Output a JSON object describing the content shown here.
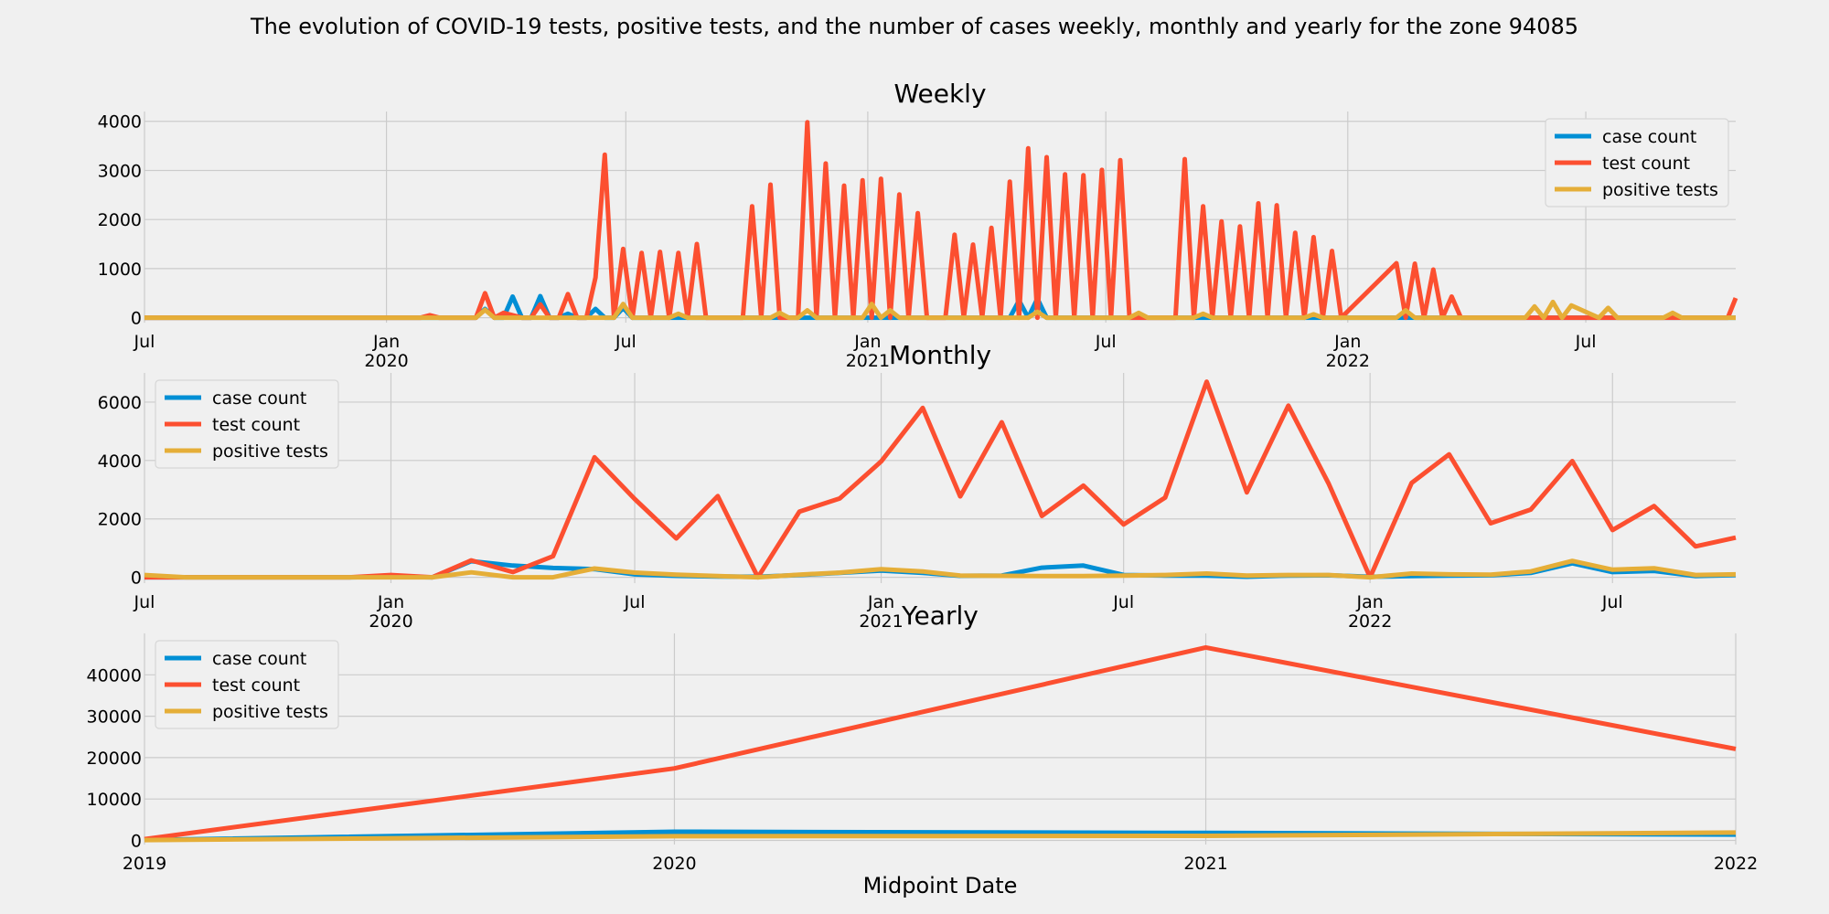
{
  "suptitle": "The evolution of COVID-19 tests, positive tests, and the number of cases weekly, monthly and yearly for the zone 94085",
  "colors": {
    "case count": "#008fd5",
    "test count": "#fc4f30",
    "positive tests": "#e5ae38",
    "background": "#f0f0f0",
    "grid": "#cbcbcb"
  },
  "chart_data": [
    {
      "type": "line",
      "title": "Weekly",
      "xlabel": "",
      "ylabel": "",
      "grid": true,
      "legend": "top-right",
      "xlim": [
        "2019-07-01",
        "2022-10-23"
      ],
      "ylim": [
        -100,
        4200
      ],
      "yticks": [
        0,
        1000,
        2000,
        3000,
        4000
      ],
      "xticks": [
        {
          "date": "2019-07-01",
          "label": "Jul",
          "sub": ""
        },
        {
          "date": "2020-01-01",
          "label": "Jan",
          "sub": "2020"
        },
        {
          "date": "2020-07-01",
          "label": "Jul",
          "sub": ""
        },
        {
          "date": "2021-01-01",
          "label": "Jan",
          "sub": "2021"
        },
        {
          "date": "2021-07-01",
          "label": "Jul",
          "sub": ""
        },
        {
          "date": "2022-01-01",
          "label": "Jan",
          "sub": "2022"
        },
        {
          "date": "2022-07-01",
          "label": "Jul",
          "sub": ""
        }
      ],
      "series": [
        {
          "name": "case count",
          "x": [
            "2019-07-01",
            "2020-01-20",
            "2020-02-24",
            "2020-03-09",
            "2020-03-16",
            "2020-03-23",
            "2020-03-30",
            "2020-04-06",
            "2020-04-13",
            "2020-04-20",
            "2020-04-27",
            "2020-05-04",
            "2020-05-11",
            "2020-05-18",
            "2020-05-25",
            "2020-06-01",
            "2020-06-08",
            "2020-06-15",
            "2020-06-22",
            "2020-06-29",
            "2020-07-06",
            "2021-04-19",
            "2021-04-26",
            "2021-05-03",
            "2021-05-10",
            "2021-05-17",
            "2022-10-23"
          ],
          "values": [
            0,
            0,
            0,
            0,
            180,
            0,
            0,
            430,
            0,
            0,
            440,
            0,
            0,
            80,
            0,
            0,
            180,
            0,
            0,
            200,
            0,
            0,
            350,
            0,
            390,
            0,
            0
          ]
        },
        {
          "name": "test count",
          "x": [
            "2019-07-01",
            "2020-01-27",
            "2020-02-03",
            "2020-02-10",
            "2020-03-09",
            "2020-03-16",
            "2020-03-23",
            "2020-03-30",
            "2020-04-06",
            "2020-04-13",
            "2020-04-20",
            "2020-04-27",
            "2020-05-04",
            "2020-05-11",
            "2020-05-18",
            "2020-05-25",
            "2020-06-01",
            "2020-06-08",
            "2020-06-15",
            "2020-06-22",
            "2020-06-29",
            "2020-07-06",
            "2020-07-13",
            "2020-07-20",
            "2020-07-27",
            "2020-08-03",
            "2020-08-10",
            "2020-08-17",
            "2020-08-24",
            "2020-08-31",
            "2020-09-07",
            "2020-09-14",
            "2020-09-21",
            "2020-09-28",
            "2020-10-05",
            "2020-10-12",
            "2020-10-19",
            "2020-10-26",
            "2020-11-02",
            "2020-11-09",
            "2020-11-16",
            "2020-11-23",
            "2020-11-30",
            "2020-12-07",
            "2020-12-14",
            "2020-12-21",
            "2020-12-28",
            "2021-01-04",
            "2021-01-11",
            "2021-01-18",
            "2021-01-25",
            "2021-02-01",
            "2021-02-08",
            "2021-02-15",
            "2021-02-22",
            "2021-03-01",
            "2021-03-08",
            "2021-03-15",
            "2021-03-22",
            "2021-03-29",
            "2021-04-05",
            "2021-04-12",
            "2021-04-19",
            "2021-04-26",
            "2021-05-03",
            "2021-05-10",
            "2021-05-17",
            "2021-05-24",
            "2021-05-31",
            "2021-06-07",
            "2021-06-14",
            "2021-06-21",
            "2021-06-28",
            "2021-07-05",
            "2021-07-12",
            "2021-07-19",
            "2021-07-26",
            "2021-08-02",
            "2021-08-09",
            "2021-08-16",
            "2021-08-23",
            "2021-08-30",
            "2021-09-06",
            "2021-09-13",
            "2021-09-20",
            "2021-09-27",
            "2021-10-04",
            "2021-10-11",
            "2021-10-18",
            "2021-10-25",
            "2021-11-01",
            "2021-11-08",
            "2021-11-15",
            "2021-11-22",
            "2021-11-29",
            "2021-12-06",
            "2021-12-13",
            "2021-12-20",
            "2021-12-27",
            "2022-02-07",
            "2022-02-14",
            "2022-02-21",
            "2022-02-28",
            "2022-03-07",
            "2022-03-14",
            "2022-03-21",
            "2022-03-28",
            "2022-04-04",
            "2022-04-11",
            "2022-04-18",
            "2022-04-25",
            "2022-05-02",
            "2022-05-09",
            "2022-05-16",
            "2022-05-23",
            "2022-05-30",
            "2022-06-06",
            "2022-06-13",
            "2022-06-20",
            "2022-06-27",
            "2022-07-04",
            "2022-07-11",
            "2022-07-18",
            "2022-07-25",
            "2022-08-01",
            "2022-08-08",
            "2022-08-15",
            "2022-08-22",
            "2022-08-29",
            "2022-09-05",
            "2022-09-12",
            "2022-09-19",
            "2022-09-26",
            "2022-10-03",
            "2022-10-10",
            "2022-10-17",
            "2022-10-23"
          ],
          "values": [
            0,
            0,
            50,
            0,
            0,
            500,
            0,
            100,
            50,
            0,
            0,
            270,
            0,
            0,
            480,
            0,
            0,
            820,
            3320,
            0,
            1400,
            0,
            1320,
            0,
            1340,
            0,
            1320,
            0,
            1500,
            0,
            0,
            0,
            0,
            0,
            2270,
            0,
            2710,
            0,
            0,
            0,
            3980,
            0,
            3140,
            0,
            2690,
            0,
            2800,
            0,
            2830,
            0,
            2510,
            0,
            2130,
            0,
            0,
            0,
            1690,
            0,
            1490,
            0,
            1830,
            0,
            2770,
            0,
            3450,
            0,
            3270,
            0,
            2920,
            0,
            2900,
            0,
            3010,
            0,
            3210,
            0,
            0,
            0,
            0,
            0,
            0,
            3230,
            0,
            2270,
            0,
            1960,
            0,
            1860,
            0,
            2330,
            0,
            2290,
            0,
            1730,
            0,
            1640,
            0,
            1360,
            0,
            1110,
            0,
            1100,
            0,
            980,
            0,
            430,
            0,
            0,
            0,
            0,
            0,
            0,
            0,
            0,
            0,
            0,
            0,
            0,
            0,
            0,
            0,
            0,
            0,
            0,
            0,
            0,
            0,
            0,
            0,
            0,
            0,
            0,
            0,
            0,
            0,
            0,
            400
          ]
        },
        {
          "name": "positive tests",
          "x": [
            "2019-07-01",
            "2020-03-09",
            "2020-03-16",
            "2020-03-23",
            "2020-06-22",
            "2020-06-29",
            "2020-07-06",
            "2020-08-03",
            "2020-08-10",
            "2020-08-17",
            "2020-10-19",
            "2020-10-26",
            "2020-11-02",
            "2020-11-09",
            "2020-11-16",
            "2020-11-23",
            "2020-12-28",
            "2021-01-04",
            "2021-01-11",
            "2021-01-18",
            "2021-01-25",
            "2021-02-01",
            "2021-05-03",
            "2021-05-10",
            "2021-05-17",
            "2021-07-19",
            "2021-07-26",
            "2021-08-02",
            "2021-09-06",
            "2021-09-13",
            "2021-09-20",
            "2021-11-29",
            "2021-12-06",
            "2021-12-13",
            "2022-02-07",
            "2022-02-14",
            "2022-02-21",
            "2022-05-16",
            "2022-05-23",
            "2022-05-30",
            "2022-06-06",
            "2022-06-13",
            "2022-06-20",
            "2022-07-11",
            "2022-07-18",
            "2022-07-25",
            "2022-08-29",
            "2022-09-05",
            "2022-09-12",
            "2022-10-23"
          ],
          "values": [
            0,
            0,
            160,
            0,
            0,
            280,
            0,
            0,
            80,
            0,
            0,
            100,
            0,
            0,
            150,
            0,
            0,
            280,
            0,
            150,
            0,
            0,
            0,
            120,
            0,
            0,
            100,
            0,
            0,
            80,
            0,
            0,
            70,
            0,
            0,
            150,
            0,
            0,
            230,
            0,
            320,
            0,
            250,
            0,
            200,
            0,
            0,
            100,
            0,
            0
          ]
        }
      ]
    },
    {
      "type": "line",
      "title": "Monthly",
      "xlabel": "",
      "ylabel": "",
      "grid": true,
      "legend": "top-left",
      "xlim": [
        "2019-07-01",
        "2022-10-01"
      ],
      "ylim": [
        -200,
        7000
      ],
      "yticks": [
        0,
        2000,
        4000,
        6000
      ],
      "xticks": [
        {
          "date": "2019-07-01",
          "label": "Jul",
          "sub": ""
        },
        {
          "date": "2020-01-01",
          "label": "Jan",
          "sub": "2020"
        },
        {
          "date": "2020-07-01",
          "label": "Jul",
          "sub": ""
        },
        {
          "date": "2021-01-01",
          "label": "Jan",
          "sub": "2021"
        },
        {
          "date": "2021-07-01",
          "label": "Jul",
          "sub": ""
        },
        {
          "date": "2022-01-01",
          "label": "Jan",
          "sub": "2022"
        },
        {
          "date": "2022-07-01",
          "label": "Jul",
          "sub": ""
        }
      ],
      "series": [
        {
          "name": "case count",
          "x": [
            "2019-07-01",
            "2019-08-01",
            "2019-09-01",
            "2019-10-01",
            "2019-11-01",
            "2019-12-01",
            "2020-01-01",
            "2020-02-01",
            "2020-03-01",
            "2020-04-01",
            "2020-05-01",
            "2020-06-01",
            "2020-07-01",
            "2020-08-01",
            "2020-09-01",
            "2020-10-01",
            "2020-11-01",
            "2020-12-01",
            "2021-01-01",
            "2021-02-01",
            "2021-03-01",
            "2021-04-01",
            "2021-05-01",
            "2021-06-01",
            "2021-07-01",
            "2021-08-01",
            "2021-09-01",
            "2021-10-01",
            "2021-11-01",
            "2021-12-01",
            "2022-01-01",
            "2022-02-01",
            "2022-03-01",
            "2022-04-01",
            "2022-05-01",
            "2022-06-01",
            "2022-07-01",
            "2022-08-01",
            "2022-09-01",
            "2022-10-01"
          ],
          "values": [
            0,
            0,
            0,
            0,
            0,
            0,
            20,
            0,
            550,
            400,
            320,
            280,
            100,
            50,
            30,
            20,
            80,
            150,
            230,
            150,
            50,
            60,
            330,
            400,
            80,
            60,
            60,
            20,
            60,
            70,
            20,
            40,
            60,
            70,
            150,
            480,
            180,
            220,
            40,
            80
          ]
        },
        {
          "name": "test count",
          "x": [
            "2019-07-01",
            "2019-08-01",
            "2019-09-01",
            "2019-10-01",
            "2019-11-01",
            "2019-12-01",
            "2020-01-01",
            "2020-02-01",
            "2020-03-01",
            "2020-04-01",
            "2020-05-01",
            "2020-06-01",
            "2020-07-01",
            "2020-08-01",
            "2020-09-01",
            "2020-10-01",
            "2020-11-01",
            "2020-12-01",
            "2021-01-01",
            "2021-02-01",
            "2021-03-01",
            "2021-04-01",
            "2021-05-01",
            "2021-06-01",
            "2021-07-01",
            "2021-08-01",
            "2021-09-01",
            "2021-10-01",
            "2021-11-01",
            "2021-12-01",
            "2022-01-01",
            "2022-02-01",
            "2022-03-01",
            "2022-04-01",
            "2022-05-01",
            "2022-06-01",
            "2022-07-01",
            "2022-08-01",
            "2022-09-01",
            "2022-10-01"
          ],
          "values": [
            0,
            0,
            0,
            0,
            0,
            0,
            80,
            0,
            580,
            180,
            720,
            4110,
            2680,
            1330,
            2780,
            0,
            2250,
            2700,
            3970,
            5800,
            2770,
            5310,
            2100,
            3140,
            1810,
            2730,
            6700,
            2910,
            5880,
            3220,
            0,
            3230,
            4210,
            1850,
            2320,
            3980,
            1620,
            2440,
            1060,
            1360
          ]
        },
        {
          "name": "positive tests",
          "x": [
            "2019-07-01",
            "2019-08-01",
            "2019-09-01",
            "2019-10-01",
            "2019-11-01",
            "2019-12-01",
            "2020-01-01",
            "2020-02-01",
            "2020-03-01",
            "2020-04-01",
            "2020-05-01",
            "2020-06-01",
            "2020-07-01",
            "2020-08-01",
            "2020-09-01",
            "2020-10-01",
            "2020-11-01",
            "2020-12-01",
            "2021-01-01",
            "2021-02-01",
            "2021-03-01",
            "2021-04-01",
            "2021-05-01",
            "2021-06-01",
            "2021-07-01",
            "2021-08-01",
            "2021-09-01",
            "2021-10-01",
            "2021-11-01",
            "2021-12-01",
            "2022-01-01",
            "2022-02-01",
            "2022-03-01",
            "2022-04-01",
            "2022-05-01",
            "2022-06-01",
            "2022-07-01",
            "2022-08-01",
            "2022-09-01",
            "2022-10-01"
          ],
          "values": [
            80,
            0,
            0,
            0,
            0,
            0,
            0,
            0,
            170,
            0,
            0,
            300,
            160,
            90,
            40,
            0,
            90,
            160,
            280,
            200,
            60,
            50,
            40,
            40,
            60,
            80,
            130,
            60,
            80,
            80,
            0,
            130,
            100,
            90,
            200,
            560,
            260,
            310,
            80,
            100
          ]
        }
      ]
    },
    {
      "type": "line",
      "title": "Yearly",
      "xlabel": "Midpoint Date",
      "ylabel": "",
      "grid": true,
      "legend": "top-left",
      "xlim": [
        "2019-01-01",
        "2022-01-01"
      ],
      "ylim": [
        -1000,
        50000
      ],
      "yticks": [
        0,
        10000,
        20000,
        30000,
        40000
      ],
      "xticks": [
        {
          "date": "2019-01-01",
          "label": "2019",
          "sub": ""
        },
        {
          "date": "2020-01-01",
          "label": "2020",
          "sub": ""
        },
        {
          "date": "2021-01-01",
          "label": "2021",
          "sub": ""
        },
        {
          "date": "2022-01-01",
          "label": "2022",
          "sub": ""
        }
      ],
      "series": [
        {
          "name": "case count",
          "x": [
            "2019-01-01",
            "2020-01-01",
            "2021-01-01",
            "2022-01-01"
          ],
          "values": [
            100,
            2100,
            1800,
            1400
          ]
        },
        {
          "name": "test count",
          "x": [
            "2019-01-01",
            "2020-01-01",
            "2021-01-01",
            "2022-01-01"
          ],
          "values": [
            300,
            17400,
            46600,
            22100
          ]
        },
        {
          "name": "positive tests",
          "x": [
            "2019-01-01",
            "2020-01-01",
            "2021-01-01",
            "2022-01-01"
          ],
          "values": [
            80,
            1000,
            1100,
            1900
          ]
        }
      ]
    }
  ]
}
